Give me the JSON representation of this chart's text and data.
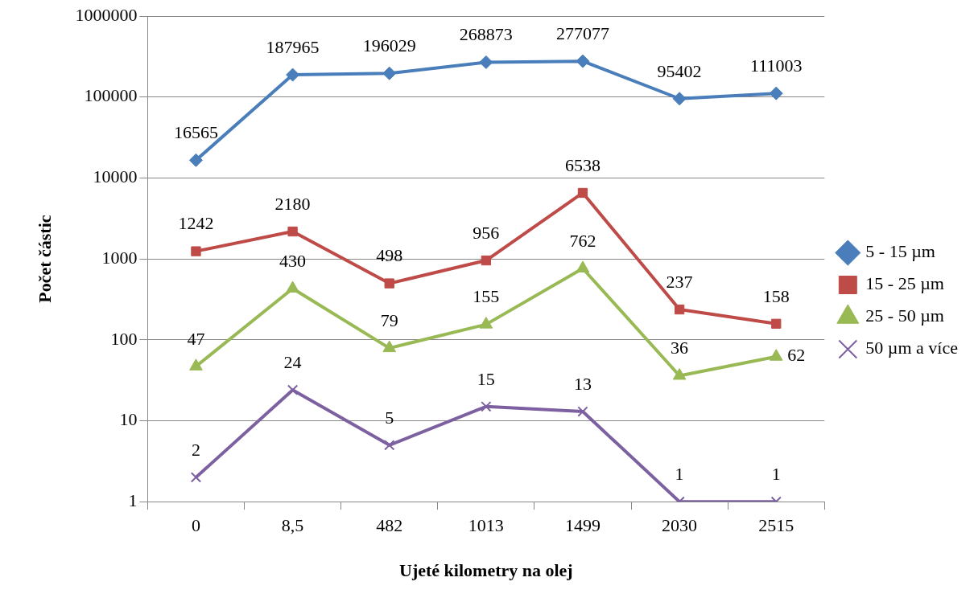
{
  "chart_data": {
    "type": "line",
    "xlabel": "Ujeté kilometry na olej",
    "ylabel": "Počet částic",
    "categories": [
      "0",
      "8,5",
      "482",
      "1013",
      "1499",
      "2030",
      "2515"
    ],
    "log": "y",
    "ylim": [
      1,
      1000000
    ],
    "yticks": [
      1,
      10,
      100,
      1000,
      10000,
      100000,
      1000000
    ],
    "grid": "y",
    "legend": "right",
    "data_labels": true,
    "line_style": "solid",
    "series": [
      {
        "name": "5 - 15 µm",
        "color": "#4a7ebb",
        "marker": "diamond",
        "values": [
          16565,
          187965,
          196029,
          268873,
          277077,
          95402,
          111003
        ]
      },
      {
        "name": "15 - 25 µm",
        "color": "#be4b48",
        "marker": "square",
        "values": [
          1242,
          2180,
          498,
          956,
          6538,
          237,
          158
        ]
      },
      {
        "name": "25 - 50 µm",
        "color": "#98b954",
        "marker": "triangle",
        "values": [
          47,
          430,
          79,
          155,
          762,
          36,
          62
        ]
      },
      {
        "name": "50 µm a více",
        "color": "#7d60a0",
        "marker": "cross",
        "values": [
          2,
          24,
          5,
          15,
          13,
          1,
          1
        ]
      }
    ]
  }
}
